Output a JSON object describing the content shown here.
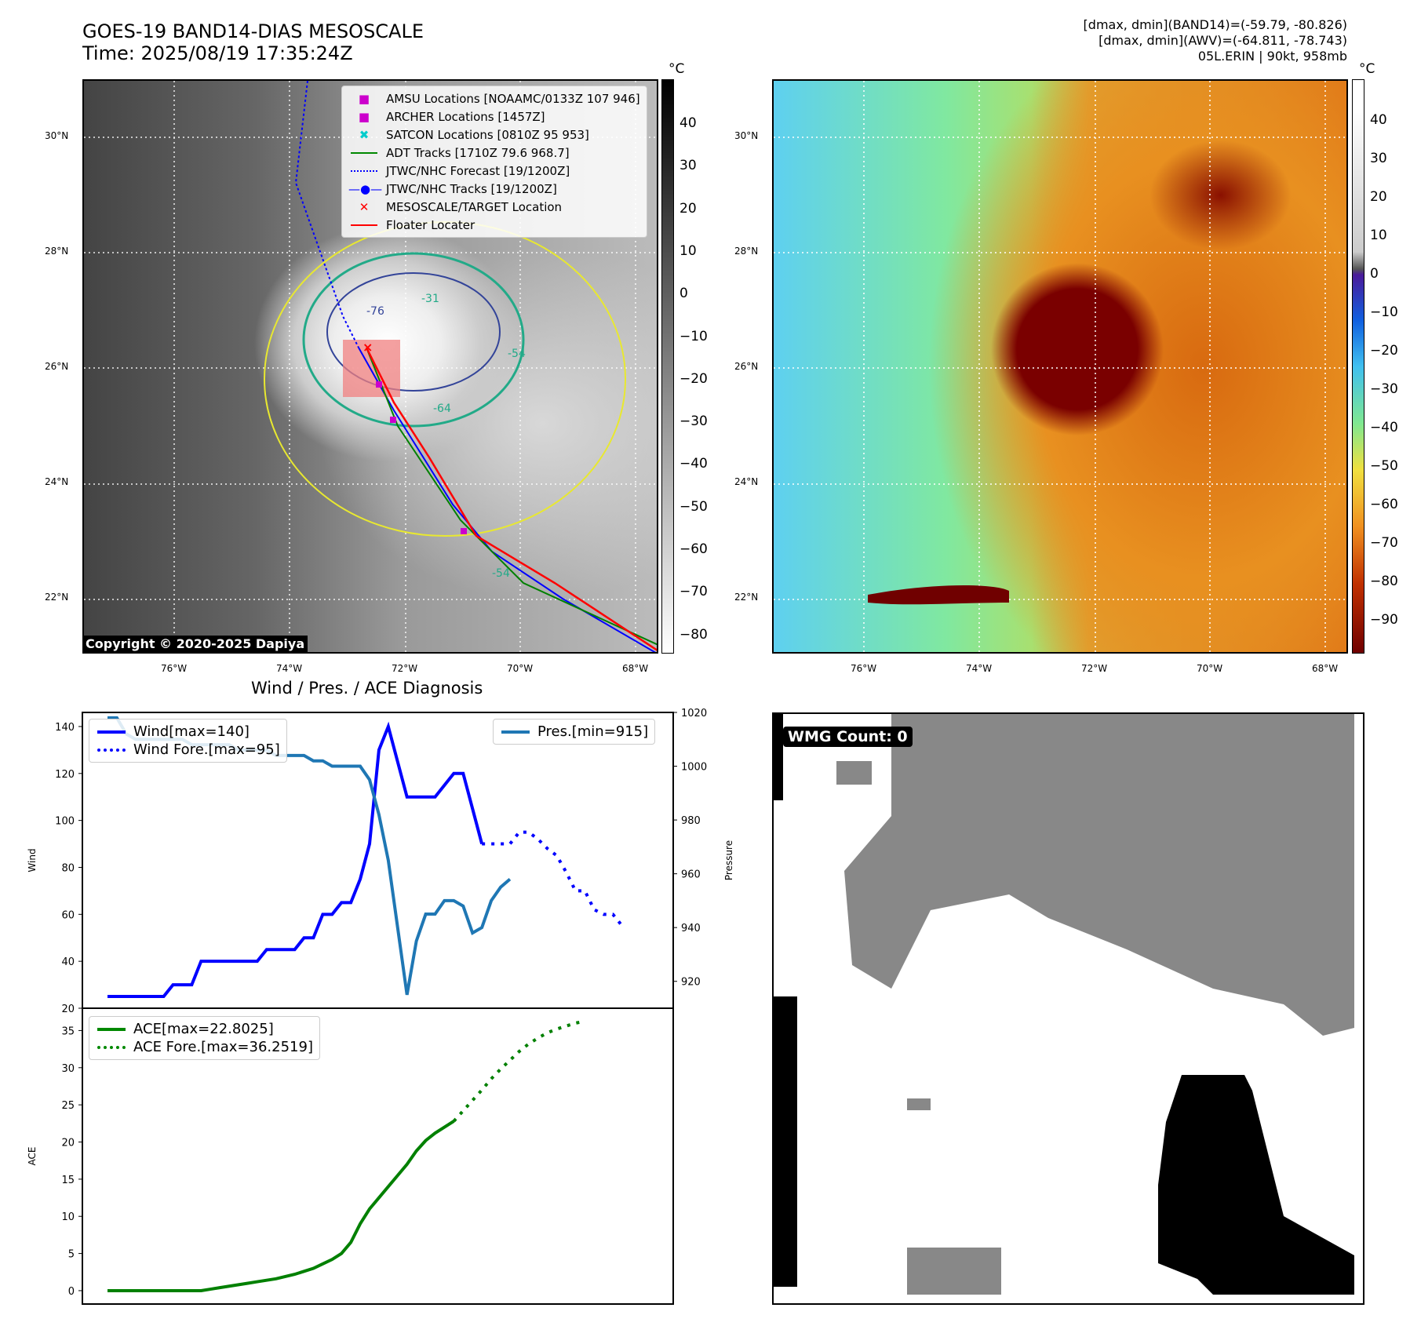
{
  "header": {
    "title": "GOES-19 BAND14-DIAS MESOSCALE",
    "time": "Time: 2025/08/19 17:35:24Z",
    "info": [
      "[dmax, dmin](BAND14)=(-59.79, -80.826)",
      "[dmax, dmin](AWV)=(-64.811, -78.743)",
      "05L.ERIN | 90kt, 958mb"
    ]
  },
  "map": {
    "lat_labels": [
      "30°N",
      "28°N",
      "26°N",
      "24°N",
      "22°N"
    ],
    "lon_labels": [
      "76°W",
      "74°W",
      "72°W",
      "70°W",
      "68°W"
    ],
    "contour_labels": [
      "-76",
      "-64",
      "-54",
      "-54",
      "-31"
    ],
    "copyright": "Copyright © 2020-2025 Dapiya",
    "legend": [
      "AMSU Locations [NOAAMC/0133Z 107 946]",
      "ARCHER Locations [1457Z]",
      "SATCON Locations [0810Z 95 953]",
      "ADT Tracks [1710Z 79.6 968.7]",
      "JTWC/NHC Forecast [19/1200Z]",
      "JTWC/NHC Tracks [19/1200Z]",
      "MESOSCALE/TARGET Location",
      "Floater Locater"
    ]
  },
  "colorbar_left": {
    "unit": "°C",
    "ticks": [
      "40",
      "30",
      "20",
      "10",
      "0",
      "−10",
      "−20",
      "−30",
      "−40",
      "−50",
      "−60",
      "−70",
      "−80"
    ]
  },
  "colorbar_right": {
    "unit": "°C",
    "ticks": [
      "40",
      "30",
      "20",
      "10",
      "0",
      "−10",
      "−20",
      "−30",
      "−40",
      "−50",
      "−60",
      "−70",
      "−80",
      "−90"
    ]
  },
  "wmg": {
    "label": "WMG Count: 0"
  },
  "colors": {
    "wind": "#0000ff",
    "pres": "#1f77b4",
    "ace": "#008000"
  },
  "chart_data": [
    {
      "type": "line",
      "title": "Wind / Pres. / ACE Diagnosis",
      "ylabel": "Wind",
      "ylabel2": "Pressure",
      "ylim": [
        20,
        146
      ],
      "ylim2": [
        910,
        1020
      ],
      "yticks": [
        20,
        40,
        60,
        80,
        100,
        120,
        140
      ],
      "yticks2": [
        920,
        940,
        960,
        980,
        1000,
        1020
      ],
      "series": [
        {
          "name": "Wind[max=140]",
          "axis": "left",
          "style": "solid",
          "color": "#0000ff",
          "x0": 0,
          "values": [
            25,
            25,
            25,
            25,
            25,
            25,
            25,
            30,
            30,
            30,
            40,
            40,
            40,
            40,
            40,
            40,
            40,
            45,
            45,
            45,
            45,
            50,
            50,
            60,
            60,
            65,
            65,
            75,
            90,
            130,
            140,
            125,
            110,
            110,
            110,
            110,
            115,
            120,
            120,
            105,
            90
          ]
        },
        {
          "name": "Wind Fore.[max=95]",
          "axis": "left",
          "style": "dotted",
          "color": "#0000ff",
          "x0": 40,
          "values": [
            90,
            90,
            90,
            90,
            95,
            95,
            92,
            88,
            85,
            78,
            70,
            70,
            62,
            60,
            60,
            55
          ]
        },
        {
          "name": "Pres.[min=915]",
          "axis": "right",
          "style": "solid",
          "color": "#1f77b4",
          "x0": 0,
          "values": [
            1018,
            1018,
            1012,
            1010,
            1010,
            1010,
            1010,
            1010,
            1010,
            1008,
            1008,
            1008,
            1008,
            1008,
            1006,
            1006,
            1006,
            1006,
            1004,
            1004,
            1004,
            1004,
            1002,
            1002,
            1000,
            1000,
            1000,
            1000,
            995,
            982,
            965,
            940,
            915,
            935,
            945,
            945,
            950,
            950,
            948,
            938,
            940,
            950,
            955,
            958
          ]
        }
      ],
      "legend_left": [
        "Wind[max=140]",
        "Wind Fore.[max=95]"
      ],
      "legend_right": [
        "Pres.[min=915]"
      ]
    },
    {
      "type": "line",
      "ylabel": "ACE",
      "ylim": [
        -1.8,
        38
      ],
      "yticks": [
        0,
        5,
        10,
        15,
        20,
        25,
        30,
        35
      ],
      "series": [
        {
          "name": "ACE[max=22.8025]",
          "style": "solid",
          "color": "#008000",
          "x0": 0,
          "values": [
            0,
            0,
            0,
            0,
            0,
            0,
            0,
            0,
            0,
            0,
            0,
            0.2,
            0.4,
            0.6,
            0.8,
            1.0,
            1.2,
            1.4,
            1.6,
            1.9,
            2.2,
            2.6,
            3.0,
            3.6,
            4.2,
            5.0,
            6.5,
            9,
            11,
            12.5,
            14,
            15.5,
            17,
            18.8,
            20.2,
            21.2,
            22.0,
            22.8
          ]
        },
        {
          "name": "ACE Fore.[max=36.2519]",
          "style": "dotted",
          "color": "#008000",
          "x0": 37,
          "values": [
            22.8,
            24.2,
            25.6,
            27,
            28.5,
            29.8,
            31,
            32.2,
            33.2,
            34,
            34.7,
            35.2,
            35.6,
            36,
            36.25
          ]
        }
      ],
      "legend": [
        "ACE[max=22.8025]",
        "ACE Fore.[max=36.2519]"
      ]
    }
  ]
}
